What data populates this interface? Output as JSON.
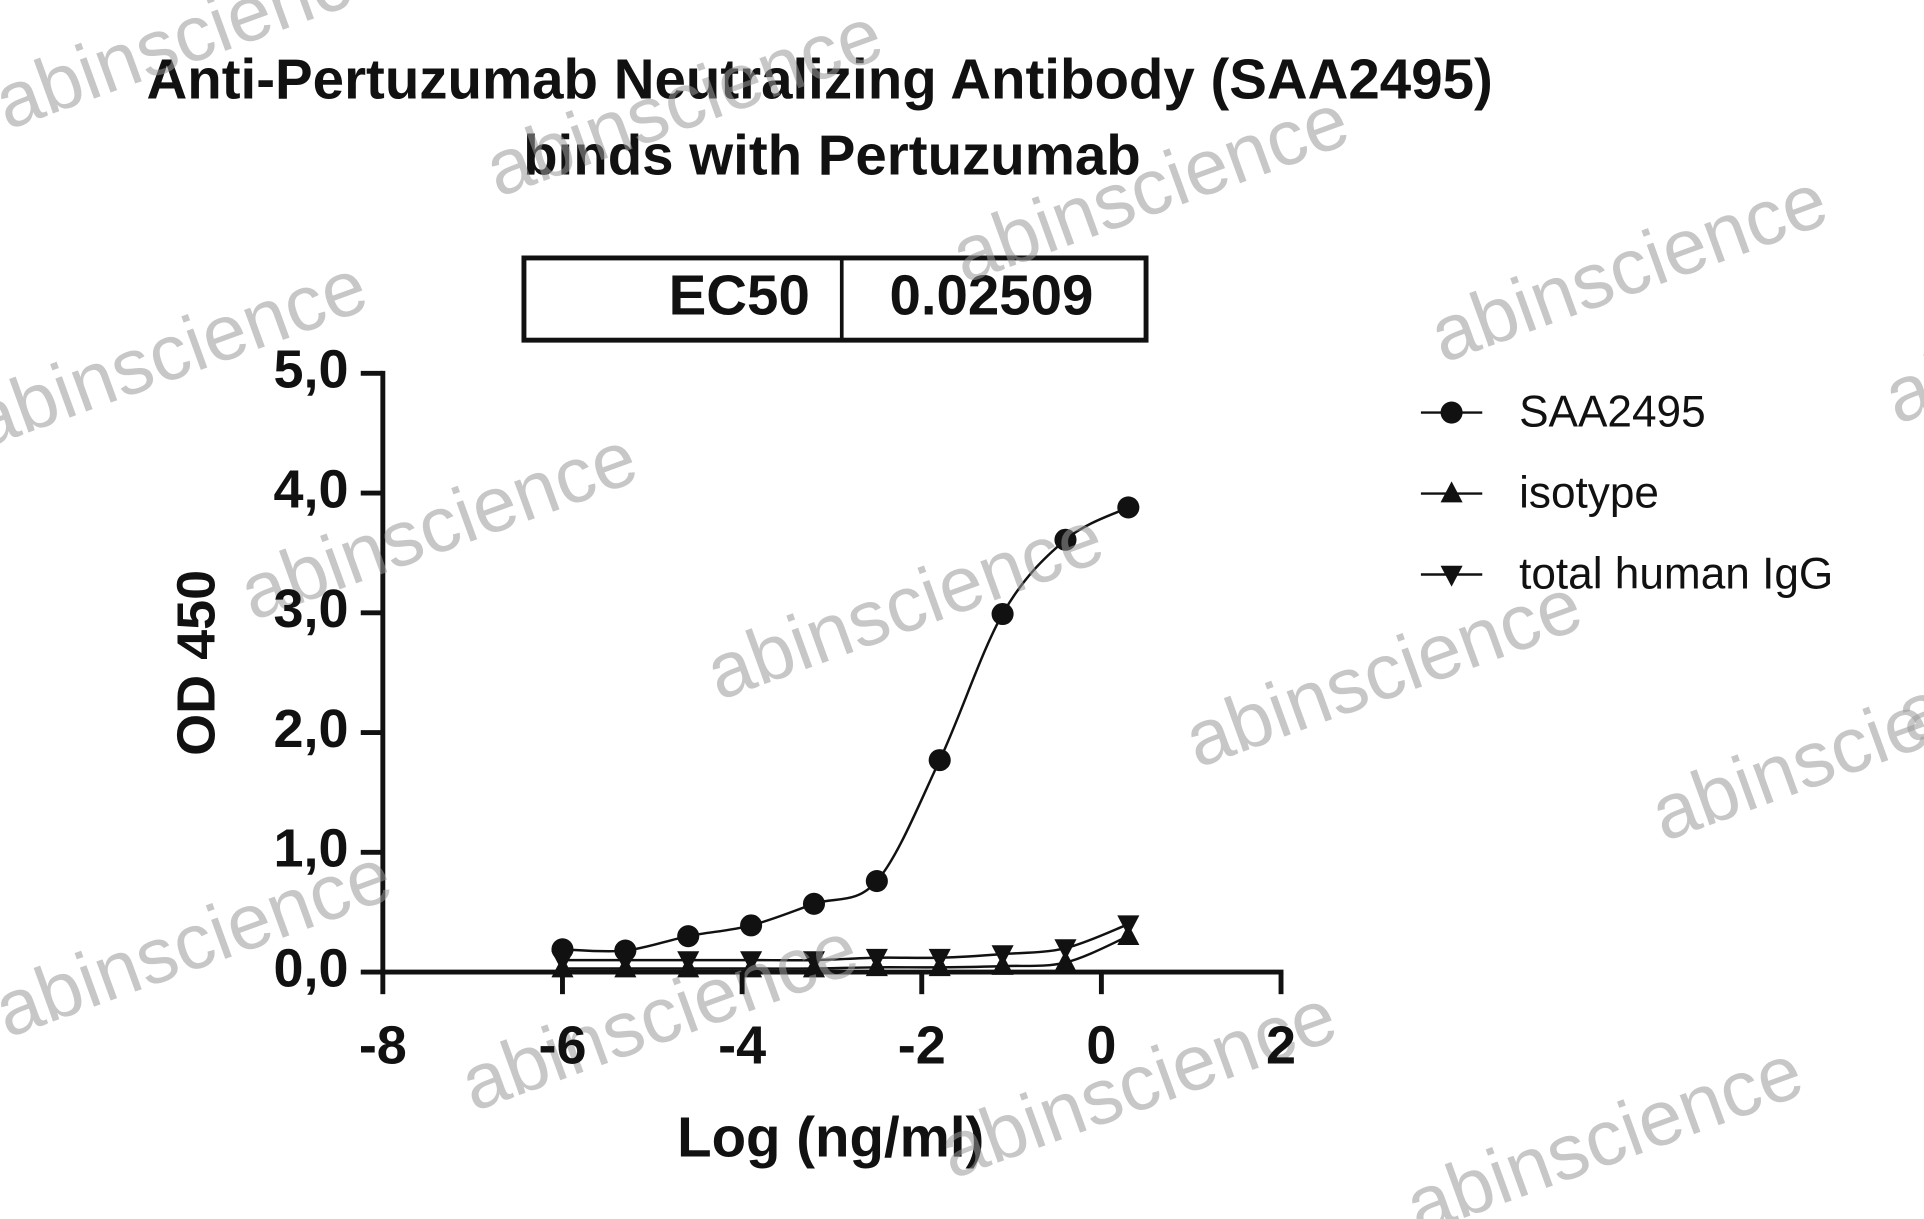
{
  "chart_data": {
    "type": "line",
    "title": [
      "Anti-Pertuzumab Neutralizing Antibody (SAA2495)",
      "binds with Pertuzumab"
    ],
    "ec50_label": "EC50",
    "ec50_value": "0.02509",
    "x_label": "Log (ng/ml)",
    "y_label": "OD 450",
    "x": [
      -6,
      -5.3,
      -4.6,
      -3.9,
      -3.2,
      -2.5,
      -1.8,
      -1.1,
      -0.4,
      0.3
    ],
    "series": [
      {
        "name": "SAA2495",
        "color": "#111111",
        "marker": "circle",
        "values": [
          0.19,
          0.18,
          0.3,
          0.39,
          0.57,
          0.76,
          1.77,
          2.99,
          3.61,
          3.88
        ]
      },
      {
        "name": "isotype",
        "color": "#111111",
        "marker": "triangle-up",
        "values": [
          0.03,
          0.03,
          0.03,
          0.03,
          0.03,
          0.04,
          0.04,
          0.05,
          0.08,
          0.3
        ]
      },
      {
        "name": "total human IgG",
        "color": "#111111",
        "marker": "triangle-down",
        "values": [
          0.1,
          0.1,
          0.1,
          0.1,
          0.1,
          0.12,
          0.12,
          0.15,
          0.2,
          0.4
        ]
      }
    ],
    "xlim": [
      -8,
      2
    ],
    "xticks": [
      -8,
      -6,
      -4,
      -2,
      0,
      2
    ],
    "ylim": [
      0,
      5
    ],
    "yticks": [
      {
        "value": 0,
        "label": "0,0"
      },
      {
        "value": 1,
        "label": "1,0"
      },
      {
        "value": 2,
        "label": "2,0"
      },
      {
        "value": 3,
        "label": "3,0"
      },
      {
        "value": 4,
        "label": "4,0"
      },
      {
        "value": 5,
        "label": "5,0"
      }
    ],
    "legend": "right",
    "watermark": "abinscience"
  }
}
